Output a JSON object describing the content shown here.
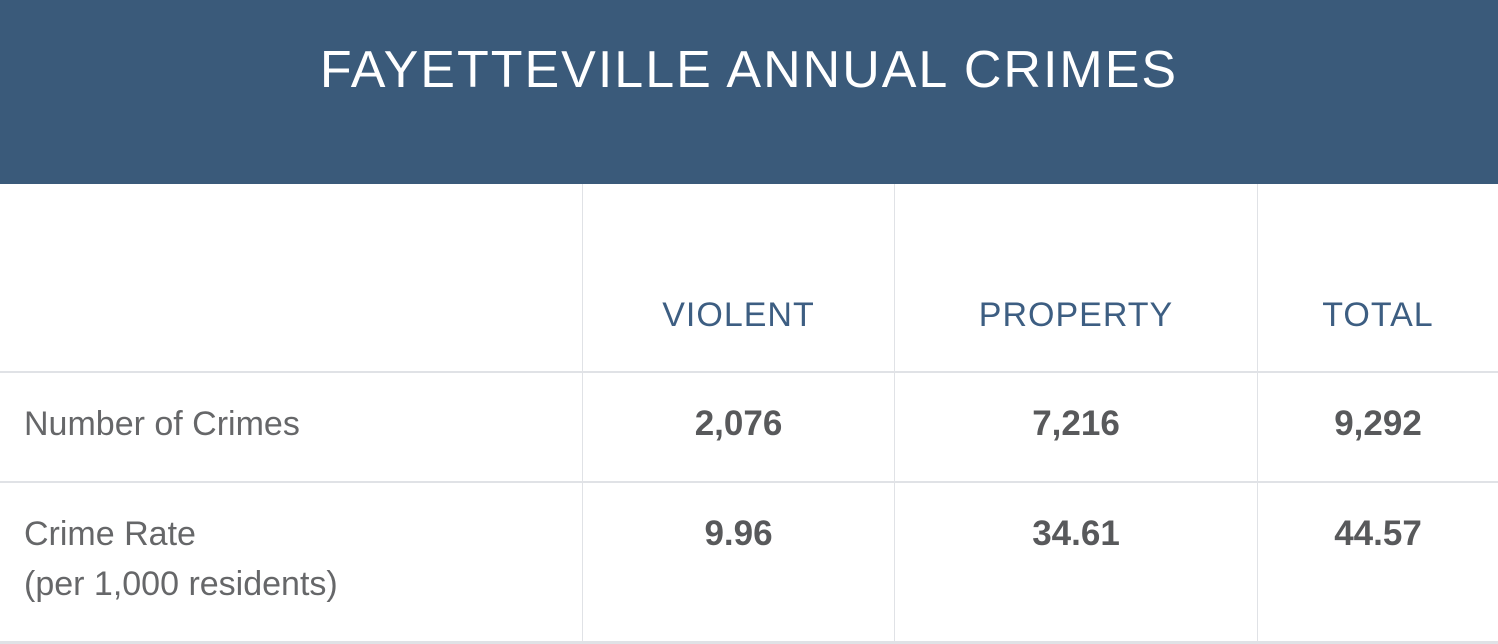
{
  "header": {
    "title": "FAYETTEVILLE ANNUAL CRIMES"
  },
  "table": {
    "columns": [
      "VIOLENT",
      "PROPERTY",
      "TOTAL"
    ],
    "rows": [
      {
        "label": "Number of Crimes",
        "label_line2": "",
        "values": [
          "2,076",
          "7,216",
          "9,292"
        ]
      },
      {
        "label": "Crime Rate",
        "label_line2": "(per 1,000 residents)",
        "values": [
          "9.96",
          "34.61",
          "44.57"
        ]
      }
    ]
  },
  "colors": {
    "banner_background": "#3a5a7a",
    "banner_text": "#ffffff",
    "column_header_text": "#3d5e82",
    "label_text": "#666769",
    "value_text": "#58595b",
    "border": "#e0e2e6"
  },
  "chart_data": {
    "type": "table",
    "title": "FAYETTEVILLE ANNUAL CRIMES",
    "columns": [
      "",
      "VIOLENT",
      "PROPERTY",
      "TOTAL"
    ],
    "rows": [
      {
        "label": "Number of Crimes",
        "values": [
          2076,
          7216,
          9292
        ]
      },
      {
        "label": "Crime Rate (per 1,000 residents)",
        "values": [
          9.96,
          34.61,
          44.57
        ]
      }
    ]
  }
}
